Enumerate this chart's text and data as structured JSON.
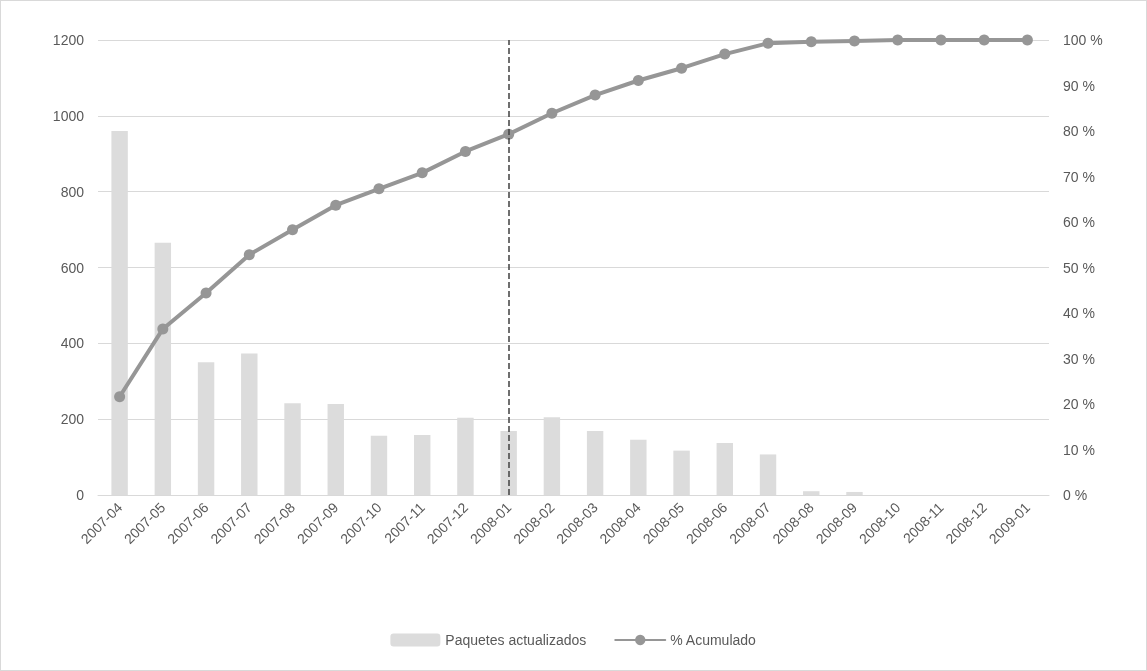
{
  "chart_data": {
    "type": "bar",
    "categories": [
      "2007-04",
      "2007-05",
      "2007-06",
      "2007-07",
      "2007-08",
      "2007-09",
      "2007-10",
      "2007-11",
      "2007-12",
      "2008-01",
      "2008-02",
      "2008-03",
      "2008-04",
      "2008-05",
      "2008-06",
      "2008-07",
      "2008-08",
      "2008-09",
      "2008-10",
      "2008-11",
      "2008-12",
      "2009-01"
    ],
    "series": [
      {
        "name": "Paquetes actualizados",
        "color": "#dcdcdc",
        "values": [
          960,
          665,
          350,
          373,
          242,
          240,
          156,
          158,
          204,
          169,
          205,
          169,
          146,
          117,
          137,
          107,
          10,
          8,
          0,
          0,
          0,
          0
        ]
      },
      {
        "name": "% Acumulado",
        "type": "line",
        "axis": "y2",
        "color": "#969696",
        "values": [
          21.6,
          36.5,
          44.4,
          52.8,
          58.3,
          63.7,
          67.3,
          70.8,
          75.5,
          79.3,
          83.9,
          87.9,
          91.1,
          93.8,
          96.9,
          99.3,
          99.6,
          99.8,
          100,
          100,
          100,
          100
        ]
      }
    ],
    "ylim": [
      0,
      1200
    ],
    "yticks": [
      0,
      200,
      400,
      600,
      800,
      1000,
      1200
    ],
    "y2lim": [
      0,
      100
    ],
    "y2ticks": [
      {
        "value": 0,
        "label": "0 %"
      },
      {
        "value": 10,
        "label": "10 %"
      },
      {
        "value": 20,
        "label": "20 %"
      },
      {
        "value": 30,
        "label": "30 %"
      },
      {
        "value": 40,
        "label": "40 %"
      },
      {
        "value": 50,
        "label": "50 %"
      },
      {
        "value": 60,
        "label": "60 %"
      },
      {
        "value": 70,
        "label": "70 %"
      },
      {
        "value": 80,
        "label": "80 %"
      },
      {
        "value": 90,
        "label": "90 %"
      },
      {
        "value": 100,
        "label": "100 %"
      }
    ],
    "ref_lines": [
      {
        "axis": "x",
        "value": "2008-01",
        "color": "#404040",
        "line_style": "dashed"
      }
    ],
    "marker": "circle",
    "grid": "y",
    "legend": "bottom"
  }
}
